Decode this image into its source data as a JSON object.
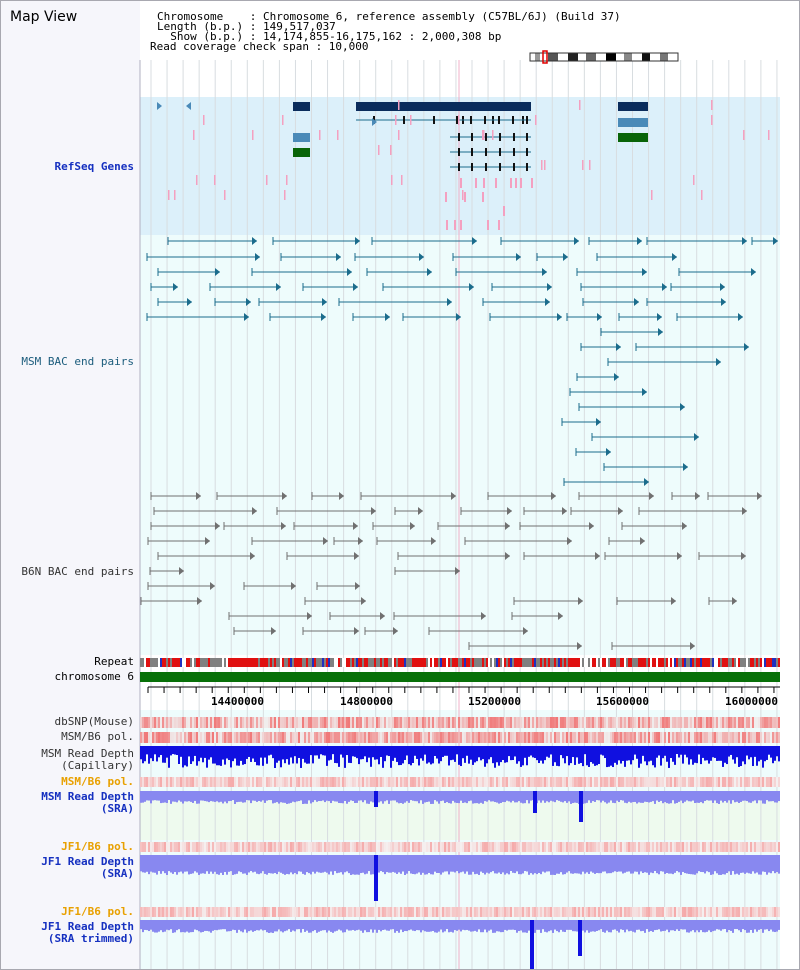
{
  "title": "Map View",
  "info": {
    "chromosome_line": "Chromosome    : Chromosome 6, reference assembly (C57BL/6J) (Build 37)",
    "length_line": "Length (b.p.) : 149,517,037",
    "show_line": "  Show (b.p.) : 14,174,855-16,175,162 : 2,000,308 bp",
    "span_line": "Read coverage check span : 10,000"
  },
  "tracks": {
    "refseq": "RefSeq Genes",
    "msm_bac": "MSM BAC end pairs",
    "b6n_bac": "B6N BAC end pairs",
    "repeat": "Repeat",
    "chromosome": "chromosome 6",
    "dbsnp": "dbSNP(Mouse)",
    "msm_b6_pol_1": "MSM/B6 pol.",
    "msm_read_depth_cap": "MSM Read Depth\n(Capillary)",
    "msm_b6_pol_2": "MSM/B6 pol.",
    "msm_read_depth_sra": "MSM Read Depth\n(SRA)",
    "jf1_b6_pol_1": "JF1/B6 pol.",
    "jf1_read_depth_sra": "JF1 Read Depth\n(SRA)",
    "jf1_b6_pol_2": "JF1/B6 pol.",
    "jf1_read_depth_trim": "JF1 Read Depth\n(SRA trimmed)"
  },
  "axis_ticks": [
    "14400000",
    "14800000",
    "15200000",
    "15600000",
    "16000000"
  ],
  "colors": {
    "refseq_bg": "#dcf0fa",
    "track_bg": "#eefcfc",
    "gene_dark": "#0a2c5c",
    "gene_mid": "#4a8ab8",
    "gene_green": "#086408",
    "msm_bac": "#1b6c8c",
    "b6n_bac": "#707070",
    "chromosome_bar": "#087008",
    "depth_blue": "#1010e0",
    "depth_light": "#8888f0",
    "pink": "#f4a0c0"
  }
}
